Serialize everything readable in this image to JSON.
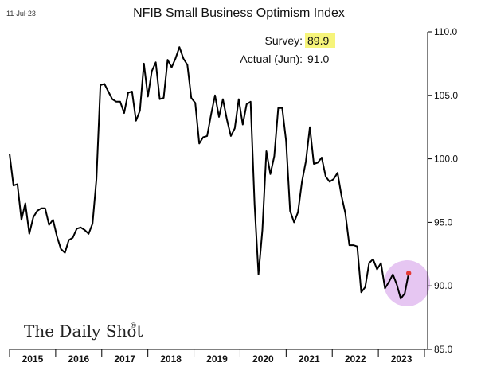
{
  "date_label": "11-Jul-23",
  "brand": {
    "name": "The Daily Shot",
    "mark": "®"
  },
  "annotation": {
    "survey_label": "Survey:",
    "survey_value": "89.9",
    "actual_label": "Actual (Jun):",
    "actual_value": "91.0"
  },
  "colors": {
    "line": "#000000",
    "survey_highlight": "#f6f47a",
    "latest_point": "#e53935",
    "highlight_circle": "#e6c6f2"
  },
  "chart_data": {
    "type": "line",
    "title": "NFIB Small Business Optimism Index",
    "xlabel": "",
    "ylabel": "",
    "ylim": [
      85,
      110
    ],
    "yticks": [
      "85.0",
      "90.0",
      "95.0",
      "100.0",
      "105.0",
      "110.0"
    ],
    "years": [
      "2015",
      "2016",
      "2017",
      "2018",
      "2019",
      "2020",
      "2021",
      "2022",
      "2023"
    ],
    "xlim": [
      2015.0,
      2023.75
    ],
    "y_axis_position": "right",
    "grid": false,
    "series": [
      {
        "x": [
          2015.0,
          2015.083,
          2015.167,
          2015.25,
          2015.333,
          2015.417,
          2015.5,
          2015.583,
          2015.667,
          2015.75,
          2015.833,
          2015.917,
          2016.0,
          2016.083,
          2016.167,
          2016.25,
          2016.333,
          2016.417,
          2016.5,
          2016.583,
          2016.667,
          2016.75,
          2016.833,
          2016.917,
          2017.0,
          2017.083,
          2017.167,
          2017.25,
          2017.333,
          2017.417,
          2017.5,
          2017.583,
          2017.667,
          2017.75,
          2017.833,
          2017.917,
          2018.0,
          2018.083,
          2018.167,
          2018.25,
          2018.333,
          2018.417,
          2018.5,
          2018.583,
          2018.667,
          2018.75,
          2018.833,
          2018.917,
          2019.0,
          2019.083,
          2019.167,
          2019.25,
          2019.333,
          2019.417,
          2019.5,
          2019.583,
          2019.667,
          2019.75,
          2019.833,
          2019.917,
          2020.0,
          2020.083,
          2020.167,
          2020.25,
          2020.333,
          2020.417,
          2020.5,
          2020.583,
          2020.667,
          2020.75,
          2020.833,
          2020.917,
          2021.0,
          2021.083,
          2021.167,
          2021.25,
          2021.333,
          2021.417,
          2021.5,
          2021.583,
          2021.667,
          2021.75,
          2021.833,
          2021.917,
          2022.0,
          2022.083,
          2022.167,
          2022.25,
          2022.333,
          2022.417,
          2022.5,
          2022.583,
          2022.667,
          2022.75,
          2022.833,
          2022.917,
          2023.0,
          2023.083,
          2023.167,
          2023.25,
          2023.333,
          2023.417
        ],
        "values": [
          100.4,
          97.9,
          98.0,
          95.2,
          96.5,
          94.1,
          95.4,
          95.9,
          96.1,
          96.1,
          94.8,
          95.2,
          93.9,
          92.9,
          92.6,
          93.6,
          93.8,
          94.5,
          94.6,
          94.4,
          94.1,
          94.9,
          98.4,
          105.8,
          105.9,
          105.3,
          104.7,
          104.5,
          104.5,
          103.6,
          105.2,
          105.3,
          103.0,
          103.8,
          107.5,
          104.9,
          106.9,
          107.6,
          104.7,
          104.8,
          107.8,
          107.2,
          107.9,
          108.8,
          107.9,
          107.4,
          104.8,
          104.4,
          101.2,
          101.7,
          101.8,
          103.5,
          105.0,
          103.3,
          104.7,
          103.1,
          101.8,
          102.4,
          104.7,
          102.7,
          104.3,
          104.5,
          96.4,
          90.9,
          94.4,
          100.6,
          98.8,
          100.2,
          104.0,
          104.0,
          101.4,
          95.9,
          95.0,
          95.8,
          98.2,
          99.8,
          102.5,
          99.6,
          99.7,
          100.1,
          98.6,
          98.2,
          98.4,
          98.9,
          97.1,
          95.7,
          93.2,
          93.2,
          93.1,
          89.5,
          89.9,
          91.8,
          92.1,
          91.3,
          91.8,
          89.8,
          90.3,
          90.9,
          90.1,
          89.0,
          89.4,
          91.0
        ]
      }
    ]
  }
}
